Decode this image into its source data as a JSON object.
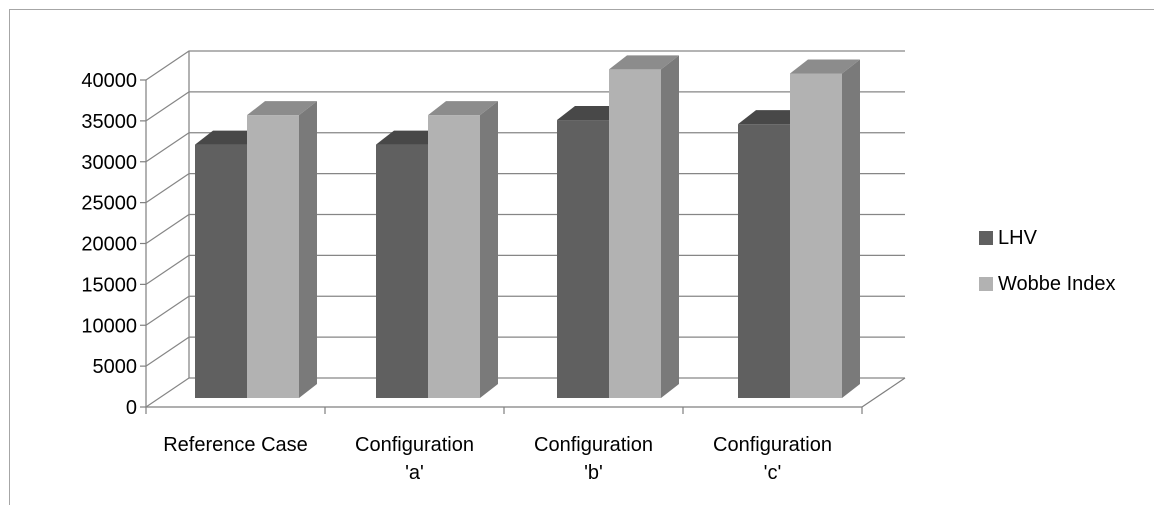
{
  "chart_data": {
    "type": "bar",
    "style": "3d-clustered-column",
    "categories": [
      "Reference Case",
      "Configuration 'a'",
      "Configuration 'b'",
      "Configuration 'c'"
    ],
    "category_lines": [
      [
        "Reference Case"
      ],
      [
        "Configuration",
        "'a'"
      ],
      [
        "Configuration",
        "'b'"
      ],
      [
        "Configuration",
        "'c'"
      ]
    ],
    "series": [
      {
        "name": "LHV",
        "values": [
          31000,
          31000,
          34000,
          33500
        ],
        "color": "#606060",
        "side_color": "#3a3a3a",
        "top_color": "#484848"
      },
      {
        "name": "Wobbe Index",
        "values": [
          34600,
          34600,
          40200,
          39700
        ],
        "color": "#b2b2b2",
        "side_color": "#7a7a7a",
        "top_color": "#8c8c8c"
      }
    ],
    "ylim": [
      0,
      40000
    ],
    "yticks": [
      0,
      5000,
      10000,
      15000,
      20000,
      25000,
      30000,
      35000,
      40000
    ],
    "title": "",
    "xlabel": "",
    "ylabel": "",
    "grid": true,
    "legend_position": "right"
  }
}
